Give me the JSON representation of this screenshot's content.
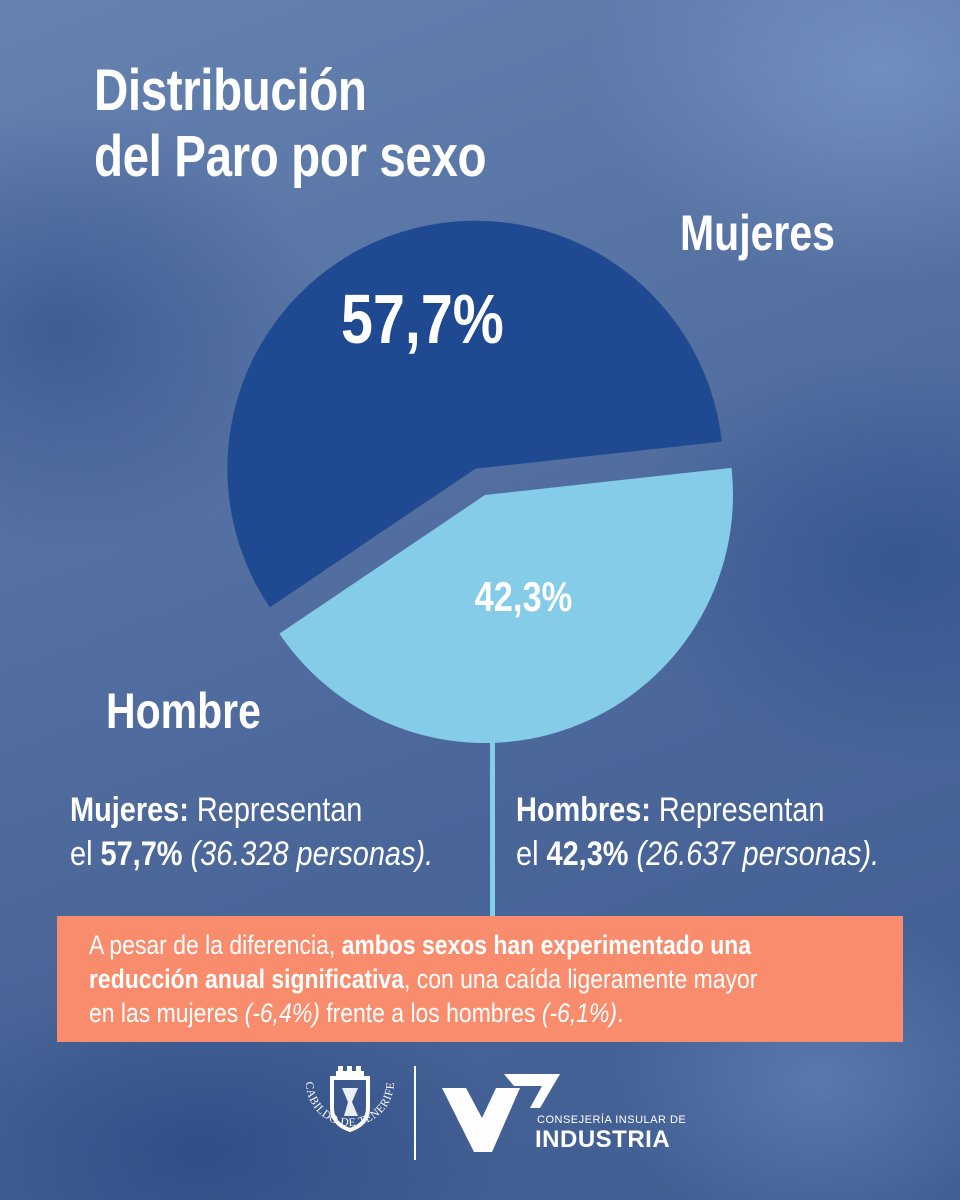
{
  "title": {
    "line1": "Distribución",
    "line2": "del Paro por sexo"
  },
  "chart_data": {
    "type": "pie",
    "title": "Distribución del Paro por sexo",
    "slices": [
      {
        "label": "Mujeres",
        "value": 57.7,
        "value_label": "57,7%",
        "color": "#1f4990",
        "exploded": true
      },
      {
        "label": "Hombre",
        "value": 42.3,
        "value_label": "42,3%",
        "color": "#84cce7",
        "exploded": false
      }
    ]
  },
  "labels": {
    "mujeres": "Mujeres",
    "hombre": "Hombre"
  },
  "stats": {
    "mujeres": {
      "head": "Mujeres:",
      "text1": " Representan",
      "text2": "el ",
      "pct": "57,7%",
      "people": " (36.328 personas)."
    },
    "hombres": {
      "head": "Hombres:",
      "text1": " Representan",
      "text2": "el ",
      "pct": "42,3%",
      "people": " (26.637 personas)."
    }
  },
  "note": {
    "part1": "A pesar de la diferencia, ",
    "bold1": "ambos sexos han experimentado una",
    "bold2": "reducción anual significativa",
    "part2": ", con una caída ligeramente mayor",
    "part3": "en las mujeres ",
    "women_change": "(-6,4%)",
    "part4": " frente a los hombres ",
    "men_change": "(-6,1%)",
    "part5": "."
  },
  "logos": {
    "cabildo": "CABILDO DE TENERIFE",
    "consejeria_small": "CONSEJERÍA INSULAR DE",
    "consejeria_big": "INDUSTRIA"
  },
  "colors": {
    "mujeres": "#1f4990",
    "hombres": "#84cce7",
    "note_bg": "#f98c6c",
    "connector": "#86cde8"
  }
}
